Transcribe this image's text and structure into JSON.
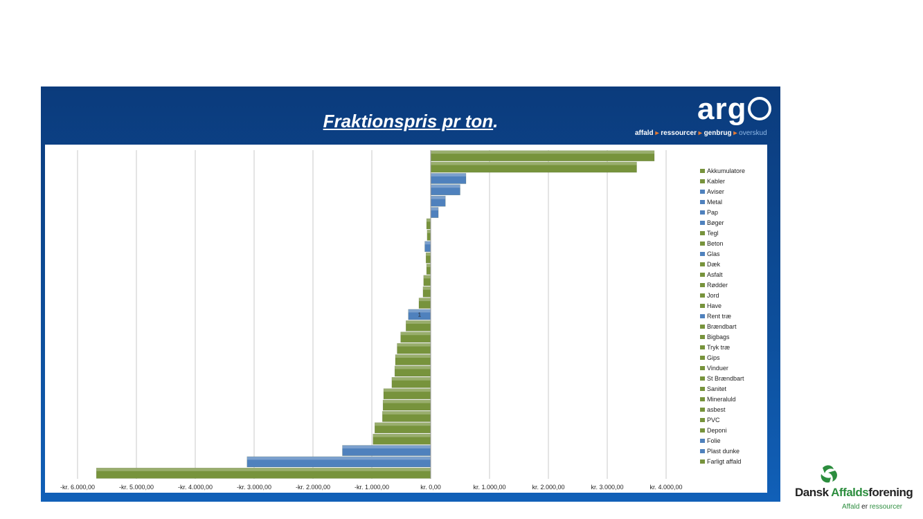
{
  "slide": {
    "title_main": "Fraktionspris pr ton",
    "title_dot": ".",
    "brand": {
      "logo_text": "arg",
      "tagline_parts": [
        "affald",
        "ressourcer",
        "genbrug",
        "overskud"
      ],
      "tagline_arrow": "▸"
    },
    "footer_logo": {
      "name_a": "Dansk ",
      "name_b": "Affalds",
      "name_c": "forening",
      "sub_a": "Affald",
      "sub_b": " er ",
      "sub_c": "ressourcer"
    }
  },
  "colors": {
    "green": "#77933c",
    "blue": "#4f81bd",
    "panel": "#0d4f9c"
  },
  "chart_data": {
    "type": "bar",
    "orientation": "horizontal",
    "title": "Fraktionspris pr ton",
    "xlim": [
      -6000,
      4000
    ],
    "x_ticks": [
      -6000,
      -5000,
      -4000,
      -3000,
      -2000,
      -1000,
      0,
      1000,
      2000,
      3000,
      4000
    ],
    "x_tick_labels": [
      "-kr. 6.000,00",
      "-kr. 5.000,00",
      "-kr. 4.000,00",
      "-kr. 3.000,00",
      "-kr. 2.000,00",
      "-kr. 1.000,00",
      "kr. 0,00",
      "kr. 1.000,00",
      "kr. 2.000,00",
      "kr. 3.000,00",
      "kr. 4.000,00"
    ],
    "grid": true,
    "legend_position": "right",
    "data_label": {
      "category": "Rent træ",
      "text": "1"
    },
    "categories": [
      "Akkumulatore",
      "Kabler",
      "Aviser",
      "Metal",
      "Pap",
      "Bøger",
      "Tegl",
      "Beton",
      "Glas",
      "Dæk",
      "Asfalt",
      "Rødder",
      "Jord",
      "Have",
      "Rent træ",
      "Brændbart",
      "Bigbags",
      "Tryk træ",
      "Gips",
      "Vinduer",
      "St Brændbart",
      "Sanitet",
      "Mineraluld",
      "asbest",
      "PVC",
      "Deponi",
      "Folie",
      "Plast dunke",
      "Farligt affald"
    ],
    "values": [
      3800,
      3500,
      600,
      500,
      250,
      130,
      -70,
      -60,
      -100,
      -80,
      -70,
      -120,
      -130,
      -200,
      -380,
      -420,
      -510,
      -570,
      -600,
      -610,
      -660,
      -800,
      -810,
      -820,
      -950,
      -980,
      -1500,
      -3120,
      -5680
    ],
    "bar_colors": [
      "#77933c",
      "#77933c",
      "#4f81bd",
      "#4f81bd",
      "#4f81bd",
      "#4f81bd",
      "#77933c",
      "#77933c",
      "#4f81bd",
      "#77933c",
      "#77933c",
      "#77933c",
      "#77933c",
      "#77933c",
      "#4f81bd",
      "#77933c",
      "#77933c",
      "#77933c",
      "#77933c",
      "#77933c",
      "#77933c",
      "#77933c",
      "#77933c",
      "#77933c",
      "#77933c",
      "#77933c",
      "#4f81bd",
      "#4f81bd",
      "#77933c"
    ],
    "legend": [
      "Akkumulatore",
      "Kabler",
      "Aviser",
      "Metal",
      "Pap",
      "Bøger",
      "Tegl",
      "Beton",
      "Glas",
      "Dæk",
      "Asfalt",
      "Rødder",
      "Jord",
      "Have",
      "Rent træ",
      "Brændbart",
      "Bigbags",
      "Tryk træ",
      "Gips",
      "Vinduer",
      "St Brændbart",
      "Sanitet",
      "Mineraluld",
      "asbest",
      "PVC",
      "Deponi",
      "Folie",
      "Plast dunke",
      "Farligt affald"
    ]
  }
}
